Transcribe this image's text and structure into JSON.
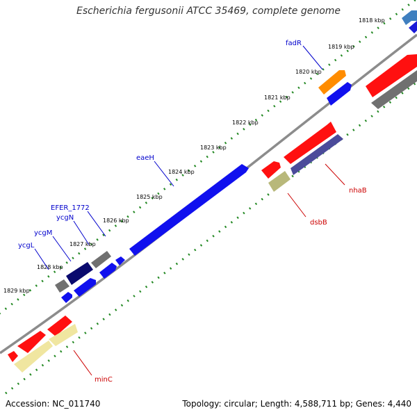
{
  "title": "Escherichia fergusonii ATCC 35469, complete genome",
  "footer": {
    "accession": "Accession: NC_011740",
    "summary": "Topology: circular; Length: 4,588,711 bp; Genes: 4,440"
  },
  "colors": {
    "backbone": "#808080",
    "tick": "#228822",
    "label_forward": "#0000cc",
    "label_reverse": "#cc0000"
  },
  "kbp_labels": [
    "1818 kbp",
    "1819 kbp",
    "1820 kbp",
    "1821 kbp",
    "1822 kbp",
    "1823 kbp",
    "1824 kbp",
    "1825 kbp",
    "1826 kbp",
    "1827 kbp",
    "1828 kbp",
    "1829 kbp"
  ],
  "gene_labels": [
    {
      "text": "fadR",
      "strand": "forward"
    },
    {
      "text": "eaeH",
      "strand": "forward"
    },
    {
      "text": "EFER_1772",
      "strand": "forward"
    },
    {
      "text": "ycgN",
      "strand": "forward"
    },
    {
      "text": "ycgM",
      "strand": "forward"
    },
    {
      "text": "ycgL",
      "strand": "forward"
    },
    {
      "text": "nhaB",
      "strand": "reverse"
    },
    {
      "text": "dsbB",
      "strand": "reverse"
    },
    {
      "text": "minC",
      "strand": "reverse"
    }
  ]
}
